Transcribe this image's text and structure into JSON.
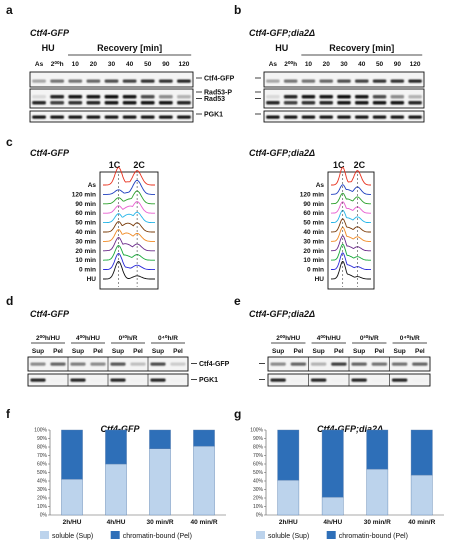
{
  "panel_letters": [
    "a",
    "b",
    "c",
    "d",
    "e",
    "f",
    "g"
  ],
  "genotypes": {
    "wt": "Ctf4-GFP",
    "mut": "Ctf4-GFP;dia2Δ"
  },
  "blot_ab": {
    "hu": "HU",
    "recovery": "Recovery [min]",
    "lanes": [
      "As",
      "2⁰⁰h",
      "10",
      "20",
      "30",
      "40",
      "50",
      "90",
      "120"
    ],
    "rows": [
      "Ctf4-GFP",
      "Rad53-P",
      "Rad53",
      "PGK1"
    ]
  },
  "facs": {
    "peaks": [
      "1C",
      "2C"
    ],
    "timepoints": [
      "As",
      "120 min",
      "90 min",
      "60 min",
      "50 min",
      "40 min",
      "30 min",
      "20 min",
      "10 min",
      "0 min",
      "HU"
    ],
    "colors": [
      "#e8311e",
      "#1f3fbf",
      "#2aa02a",
      "#e85dd0",
      "#24b5e8",
      "#7a3c0a",
      "#f08a24",
      "#6a2a8a",
      "#18a83a",
      "#2a2ad8",
      "#111111"
    ]
  },
  "fraction_blot": {
    "conditions": [
      "2⁰⁰h/HU",
      "4⁰⁰h/HU",
      "0³⁰h/R",
      "0⁴⁰h/R"
    ],
    "fractions": [
      "Sup",
      "Pel"
    ],
    "rows": [
      "Ctf4-GFP",
      "PGK1"
    ]
  },
  "chart_data": [
    {
      "type": "bar",
      "title": "Ctf4-GFP",
      "categories": [
        "2h/HU",
        "4h/HU",
        "30 min/R",
        "40 min/R"
      ],
      "series": [
        {
          "name": "soluble (Sup)",
          "values": [
            42,
            60,
            78,
            81
          ]
        },
        {
          "name": "chromatin-bound (Pel)",
          "values": [
            58,
            40,
            22,
            19
          ]
        }
      ],
      "ylim": [
        0,
        100
      ],
      "yticks": [
        "0%",
        "10%",
        "20%",
        "30%",
        "40%",
        "50%",
        "60%",
        "70%",
        "80%",
        "90%",
        "100%"
      ],
      "legend": "bottom",
      "colors": [
        "#bcd3ec",
        "#2e6fb8"
      ]
    },
    {
      "type": "bar",
      "title": "Ctf4-GFP;dia2Δ",
      "categories": [
        "2h/HU",
        "4h/HU",
        "30 min/R",
        "40 min/R"
      ],
      "series": [
        {
          "name": "soluble (Sup)",
          "values": [
            41,
            21,
            54,
            47
          ]
        },
        {
          "name": "chromatin-bound (Pel)",
          "values": [
            59,
            79,
            46,
            53
          ]
        }
      ],
      "ylim": [
        0,
        100
      ],
      "yticks": [
        "0%",
        "10%",
        "20%",
        "30%",
        "40%",
        "50%",
        "60%",
        "70%",
        "80%",
        "90%",
        "100%"
      ],
      "legend": "bottom",
      "colors": [
        "#bcd3ec",
        "#2e6fb8"
      ]
    }
  ]
}
